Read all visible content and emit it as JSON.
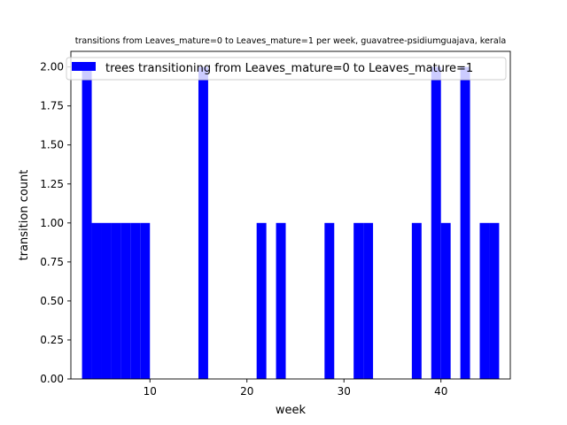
{
  "chart_data": {
    "type": "bar",
    "title": "transitions from Leaves_mature=0 to Leaves_mature=1 per week, guavatree-psidiumguajava, kerala",
    "xlabel": "week",
    "ylabel": "transition count",
    "xlim": [
      1.85,
      47.15
    ],
    "ylim": [
      0,
      2.1
    ],
    "x_ticks": [
      "10",
      "20",
      "30",
      "40"
    ],
    "y_ticks": [
      "0.00",
      "0.25",
      "0.50",
      "0.75",
      "1.00",
      "1.25",
      "1.50",
      "1.75",
      "2.00"
    ],
    "grid": false,
    "legend_position": "top-right",
    "series": [
      {
        "name": "trees transitioning from Leaves_mature=0 to Leaves_mature=1",
        "color": "#0000ff",
        "bar_width": 1,
        "bars": [
          {
            "week": 3,
            "count": 2
          },
          {
            "week": 4,
            "count": 1
          },
          {
            "week": 5,
            "count": 1
          },
          {
            "week": 6,
            "count": 1
          },
          {
            "week": 7,
            "count": 1
          },
          {
            "week": 8,
            "count": 1
          },
          {
            "week": 9,
            "count": 1
          },
          {
            "week": 15,
            "count": 2
          },
          {
            "week": 21,
            "count": 1
          },
          {
            "week": 23,
            "count": 1
          },
          {
            "week": 28,
            "count": 1
          },
          {
            "week": 31,
            "count": 1
          },
          {
            "week": 32,
            "count": 1
          },
          {
            "week": 37,
            "count": 1
          },
          {
            "week": 39,
            "count": 2
          },
          {
            "week": 40,
            "count": 1
          },
          {
            "week": 42,
            "count": 2
          },
          {
            "week": 44,
            "count": 1
          },
          {
            "week": 45,
            "count": 1
          }
        ]
      }
    ]
  }
}
